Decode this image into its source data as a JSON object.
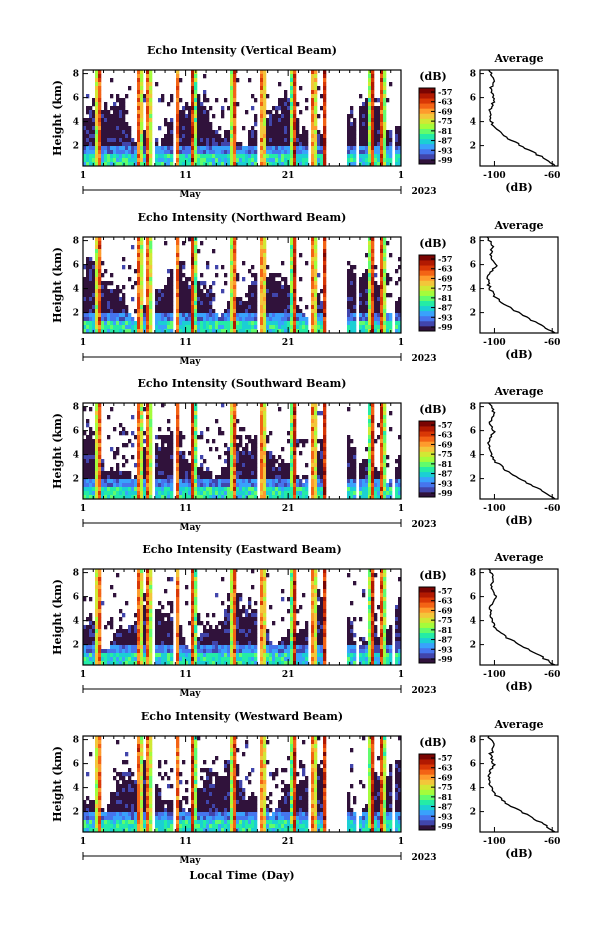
{
  "chart_data": [
    {
      "type": "heatmap",
      "title": "Echo Intensity (Vertical Beam)",
      "ylabel": "Height (km)",
      "yticks": [
        "2",
        "4",
        "6",
        "8"
      ],
      "xticks": [
        "1",
        "11",
        "21",
        "1"
      ],
      "month_label": "May",
      "year_label": "2023",
      "colorbar_title": "(dB)",
      "colorbar_ticks": [
        "-57",
        "-63",
        "-69",
        "-75",
        "-81",
        "-87",
        "-93",
        "-99"
      ],
      "avg_title": "Average",
      "avg_xticks": [
        "-100",
        "-60"
      ],
      "avg_yticks": [
        "2",
        "4",
        "6",
        "8"
      ],
      "avg_xlabel": "(dB)",
      "avg_profile_db": [
        -58,
        -68,
        -80,
        -92,
        -100,
        -103,
        -103,
        -100,
        -103,
        -100,
        -104
      ]
    },
    {
      "type": "heatmap",
      "title": "Echo Intensity (Northward Beam)",
      "ylabel": "Height (km)",
      "yticks": [
        "2",
        "4",
        "6",
        "8"
      ],
      "xticks": [
        "1",
        "11",
        "21",
        "1"
      ],
      "month_label": "May",
      "year_label": "2023",
      "colorbar_title": "(dB)",
      "colorbar_ticks": [
        "-57",
        "-63",
        "-69",
        "-75",
        "-81",
        "-87",
        "-93",
        "-99"
      ],
      "avg_title": "Average",
      "avg_xticks": [
        "-100",
        "-60"
      ],
      "avg_yticks": [
        "2",
        "4",
        "6",
        "8"
      ],
      "avg_xlabel": "(dB)",
      "avg_profile_db": [
        -58,
        -70,
        -82,
        -93,
        -101,
        -104,
        -104,
        -99,
        -103,
        -101,
        -105
      ]
    },
    {
      "type": "heatmap",
      "title": "Echo Intensity (Southward Beam)",
      "ylabel": "Height (km)",
      "yticks": [
        "2",
        "4",
        "6",
        "8"
      ],
      "xticks": [
        "1",
        "11",
        "21",
        "1"
      ],
      "month_label": "May",
      "year_label": "2023",
      "colorbar_title": "(dB)",
      "colorbar_ticks": [
        "-57",
        "-63",
        "-69",
        "-75",
        "-81",
        "-87",
        "-93",
        "-99"
      ],
      "avg_title": "Average",
      "avg_xticks": [
        "-100",
        "-60"
      ],
      "avg_yticks": [
        "2",
        "4",
        "6",
        "8"
      ],
      "avg_xlabel": "(dB)",
      "avg_profile_db": [
        -58,
        -69,
        -81,
        -92,
        -100,
        -103,
        -104,
        -100,
        -103,
        -100,
        -104
      ]
    },
    {
      "type": "heatmap",
      "title": "Echo Intensity (Eastward Beam)",
      "ylabel": "Height (km)",
      "yticks": [
        "2",
        "4",
        "6",
        "8"
      ],
      "xticks": [
        "1",
        "11",
        "21",
        "1"
      ],
      "month_label": "May",
      "year_label": "2023",
      "colorbar_title": "(dB)",
      "colorbar_ticks": [
        "-57",
        "-63",
        "-69",
        "-75",
        "-81",
        "-87",
        "-93",
        "-99"
      ],
      "avg_title": "Average",
      "avg_xticks": [
        "-100",
        "-60"
      ],
      "avg_yticks": [
        "2",
        "4",
        "6",
        "8"
      ],
      "avg_xlabel": "(dB)",
      "avg_profile_db": [
        -58,
        -69,
        -81,
        -93,
        -100,
        -103,
        -103,
        -99,
        -103,
        -100,
        -104
      ]
    },
    {
      "type": "heatmap",
      "title": "Echo Intensity (Westward Beam)",
      "ylabel": "Height (km)",
      "yticks": [
        "2",
        "4",
        "6",
        "8"
      ],
      "xticks": [
        "1",
        "11",
        "21",
        "1"
      ],
      "month_label": "May",
      "year_label": "2023",
      "colorbar_title": "(dB)",
      "colorbar_ticks": [
        "-57",
        "-63",
        "-69",
        "-75",
        "-81",
        "-87",
        "-93",
        "-99"
      ],
      "avg_title": "Average",
      "avg_xticks": [
        "-100",
        "-60"
      ],
      "avg_yticks": [
        "2",
        "4",
        "6",
        "8"
      ],
      "avg_xlabel": "(dB)",
      "avg_profile_db": [
        -58,
        -68,
        -80,
        -92,
        -100,
        -103,
        -104,
        -100,
        -103,
        -100,
        -104
      ]
    }
  ],
  "bottom_xlabel": "Local Time (Day)",
  "colormap": [
    "#30123b",
    "#4145ab",
    "#4675ed",
    "#39a2fc",
    "#1bcfd4",
    "#24eca6",
    "#61fc6c",
    "#a4fc3b",
    "#d1e834",
    "#f3c63a",
    "#fe9b2d",
    "#f36315",
    "#d93806",
    "#b11901",
    "#7a0402"
  ]
}
